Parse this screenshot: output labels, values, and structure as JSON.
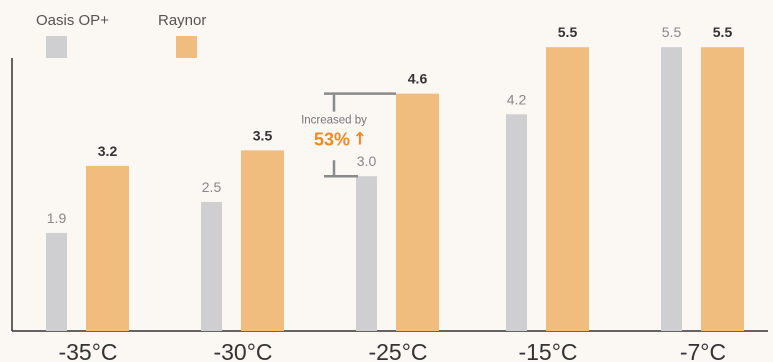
{
  "chart_data": {
    "type": "bar",
    "title": "",
    "xlabel": "",
    "ylabel": "",
    "ylim": [
      0,
      5.8
    ],
    "grid": false,
    "legend_position": "top-left",
    "categories": [
      "-35°C",
      "-30°C",
      "-25°C",
      "-15°C",
      "-7°C"
    ],
    "series": [
      {
        "name": "Oasis OP+",
        "color": "#cfcfd1",
        "values": [
          1.9,
          2.5,
          3.0,
          4.2,
          5.5
        ],
        "labels": [
          "1.9",
          "2.5",
          "3.0",
          "4.2",
          "5.5"
        ]
      },
      {
        "name": "Raynor",
        "color": "#f0bd7e",
        "values": [
          3.2,
          3.5,
          4.6,
          5.5,
          5.5
        ],
        "labels": [
          "3.2",
          "3.5",
          "4.6",
          "5.5",
          "5.5"
        ]
      }
    ],
    "annotation": {
      "category_index": 2,
      "text": "Increased by",
      "value_text": "53%",
      "arrow": "↑",
      "color": "#ef8a22"
    }
  }
}
